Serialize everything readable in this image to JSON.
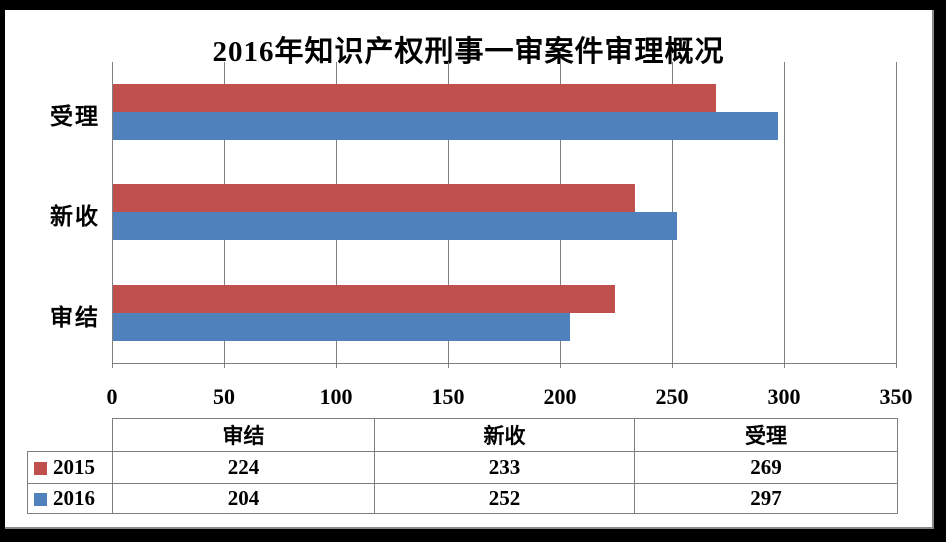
{
  "title": "2016年知识产权刑事一审案件审理概况",
  "chart_data": {
    "type": "bar",
    "orientation": "horizontal",
    "title": "2016年知识产权刑事一审案件审理概况",
    "categories": [
      "受理",
      "新收",
      "审结"
    ],
    "series": [
      {
        "name": "2015",
        "color": "#C0504D",
        "values": [
          269,
          233,
          224
        ]
      },
      {
        "name": "2016",
        "color": "#4F81BD",
        "values": [
          297,
          252,
          204
        ]
      }
    ],
    "xlim": [
      0,
      350
    ],
    "x_ticks": [
      0,
      50,
      100,
      150,
      200,
      250,
      300,
      350
    ],
    "grid": true,
    "legend_position": "bottom-table-left-column"
  },
  "data_table": {
    "column_headers": [
      "审结",
      "新收",
      "受理"
    ],
    "rows": [
      {
        "label": "2015",
        "swatch_color": "#C0504D",
        "values": [
          "224",
          "233",
          "269"
        ]
      },
      {
        "label": "2016",
        "swatch_color": "#4F81BD",
        "values": [
          "204",
          "252",
          "297"
        ]
      }
    ]
  },
  "colors": {
    "series_2015": "#C0504D",
    "series_2016": "#4F81BD",
    "gridline": "#808080",
    "table_border": "#7F7F7F",
    "text": "#000000",
    "plot_background": "#FFFFFF",
    "frame": "#000000"
  }
}
